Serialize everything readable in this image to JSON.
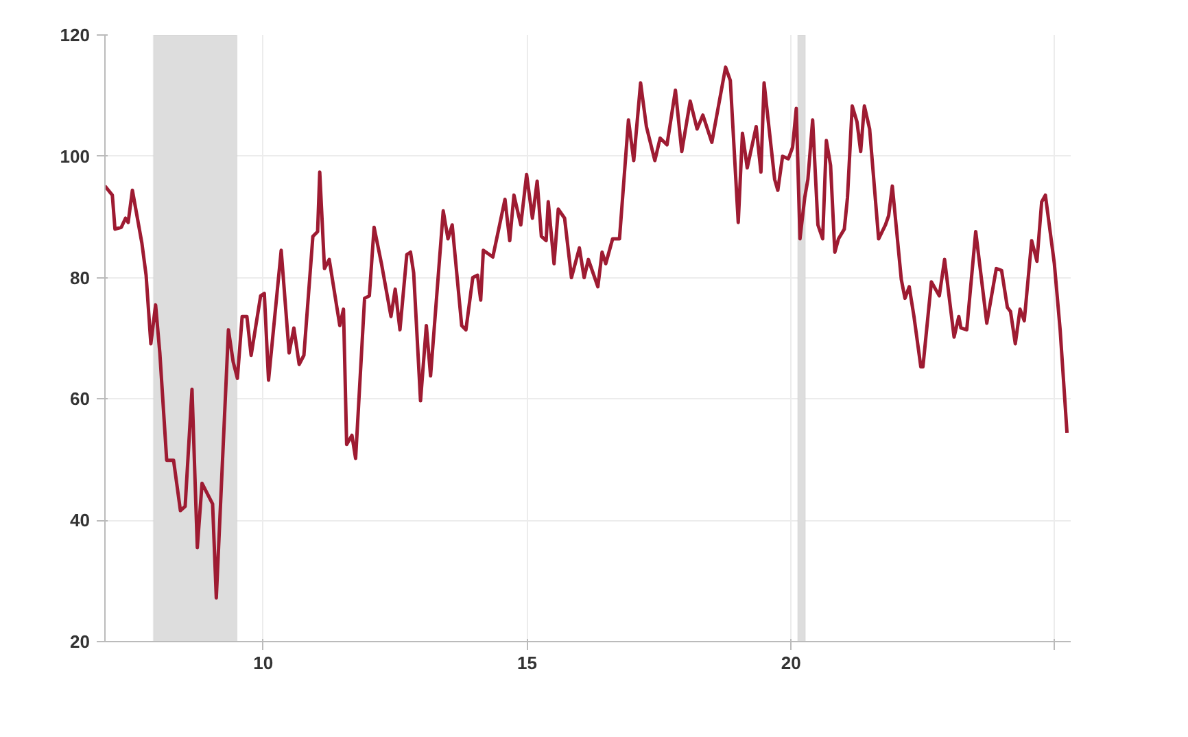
{
  "chart_data": {
    "type": "line",
    "x": [
      2007.0,
      2007.14,
      2007.19,
      2007.31,
      2007.39,
      2007.44,
      2007.52,
      2007.7,
      2007.78,
      2007.87,
      2007.96,
      2008.04,
      2008.17,
      2008.3,
      2008.43,
      2008.52,
      2008.65,
      2008.75,
      2008.84,
      2009.04,
      2009.11,
      2009.34,
      2009.43,
      2009.51,
      2009.6,
      2009.69,
      2009.77,
      2009.95,
      2010.02,
      2010.1,
      2010.34,
      2010.49,
      2010.58,
      2010.68,
      2010.77,
      2010.94,
      2011.03,
      2011.07,
      2011.16,
      2011.25,
      2011.45,
      2011.52,
      2011.58,
      2011.68,
      2011.75,
      2011.92,
      2012.01,
      2012.1,
      2012.24,
      2012.42,
      2012.5,
      2012.59,
      2012.72,
      2012.79,
      2012.85,
      2012.98,
      2013.09,
      2013.17,
      2013.41,
      2013.5,
      2013.58,
      2013.76,
      2013.84,
      2013.97,
      2014.06,
      2014.12,
      2014.17,
      2014.35,
      2014.58,
      2014.67,
      2014.75,
      2014.88,
      2014.99,
      2015.1,
      2015.19,
      2015.27,
      2015.36,
      2015.4,
      2015.51,
      2015.59,
      2015.71,
      2015.84,
      2015.99,
      2016.08,
      2016.16,
      2016.34,
      2016.42,
      2016.49,
      2016.62,
      2016.75,
      2016.92,
      2017.02,
      2017.15,
      2017.26,
      2017.42,
      2017.52,
      2017.65,
      2017.81,
      2017.93,
      2018.09,
      2018.22,
      2018.33,
      2018.5,
      2018.76,
      2018.85,
      2019.0,
      2019.08,
      2019.17,
      2019.34,
      2019.43,
      2019.49,
      2019.69,
      2019.75,
      2019.84,
      2019.95,
      2020.03,
      2020.1,
      2020.17,
      2020.26,
      2020.32,
      2020.41,
      2020.51,
      2020.6,
      2020.67,
      2020.75,
      2020.83,
      2020.9,
      2021.01,
      2021.07,
      2021.16,
      2021.25,
      2021.32,
      2021.39,
      2021.49,
      2021.66,
      2021.79,
      2021.85,
      2021.92,
      2022.09,
      2022.16,
      2022.24,
      2022.33,
      2022.46,
      2022.5,
      2022.66,
      2022.81,
      2022.91,
      2023.09,
      2023.18,
      2023.22,
      2023.33,
      2023.5,
      2023.71,
      2023.89,
      2023.99,
      2024.1,
      2024.16,
      2024.25,
      2024.34,
      2024.42,
      2024.56,
      2024.66,
      2024.75,
      2024.82,
      2024.99,
      2025.1,
      2025.23
    ],
    "series": [
      {
        "color": "#9e1b32",
        "values": [
          95.1,
          93.6,
          88.0,
          88.3,
          89.8,
          89.1,
          94.4,
          85.7,
          80.4,
          69.1,
          75.5,
          67.6,
          49.9,
          49.9,
          41.6,
          42.3,
          61.6,
          35.5,
          46.1,
          42.7,
          27.2,
          71.4,
          66.1,
          63.4,
          73.6,
          73.6,
          67.2,
          77.0,
          77.4,
          63.1,
          84.5,
          67.6,
          71.7,
          65.7,
          67.2,
          86.8,
          87.6,
          97.4,
          81.5,
          83.0,
          72.1,
          74.8,
          52.5,
          54.0,
          50.2,
          76.6,
          77.0,
          88.3,
          82.3,
          73.6,
          78.1,
          71.4,
          83.8,
          84.2,
          80.8,
          59.7,
          72.1,
          63.8,
          91.0,
          86.4,
          88.7,
          72.1,
          71.4,
          80.0,
          80.4,
          76.3,
          84.5,
          83.4,
          92.9,
          86.1,
          93.6,
          88.7,
          97.0,
          89.8,
          95.9,
          86.8,
          86.1,
          92.5,
          82.3,
          91.3,
          89.8,
          80.0,
          84.9,
          80.0,
          83.0,
          78.5,
          84.2,
          82.3,
          86.4,
          86.4,
          106.0,
          99.3,
          112.1,
          104.9,
          99.3,
          103.0,
          101.9,
          110.9,
          100.8,
          109.1,
          104.5,
          106.8,
          102.3,
          114.7,
          112.5,
          89.1,
          103.8,
          98.1,
          104.9,
          97.4,
          112.1,
          96.2,
          94.4,
          100.0,
          99.6,
          101.5,
          107.9,
          86.4,
          93.2,
          96.2,
          106.0,
          88.7,
          86.4,
          102.6,
          98.5,
          84.2,
          86.4,
          88.0,
          93.2,
          108.3,
          105.7,
          100.8,
          108.3,
          104.5,
          86.4,
          88.7,
          90.2,
          95.1,
          79.7,
          76.6,
          78.5,
          73.6,
          65.3,
          65.3,
          79.3,
          77.0,
          83.0,
          70.2,
          73.6,
          71.7,
          71.4,
          87.6,
          72.5,
          81.5,
          81.2,
          75.1,
          74.4,
          69.1,
          74.8,
          72.9,
          86.1,
          82.7,
          92.5,
          93.6,
          82.3,
          71.4,
          54.4
        ]
      }
    ],
    "xlim": [
      2007.0,
      2025.3
    ],
    "ylim": [
      20,
      120
    ],
    "xticks": [
      {
        "value": 2010,
        "label": "10"
      },
      {
        "value": 2015,
        "label": "15"
      },
      {
        "value": 2020,
        "label": "20"
      },
      {
        "value": 2025,
        "label": null
      }
    ],
    "yticks": [
      20,
      40,
      60,
      80,
      100,
      120
    ],
    "bands": [
      {
        "axis": "x",
        "from": 2007.92,
        "to": 2009.5,
        "color": "#dddddd"
      },
      {
        "axis": "x",
        "from": 2020.13,
        "to": 2020.27,
        "color": "#dddddd"
      }
    ],
    "grid": true,
    "marker": "none",
    "line_style": "solid"
  }
}
